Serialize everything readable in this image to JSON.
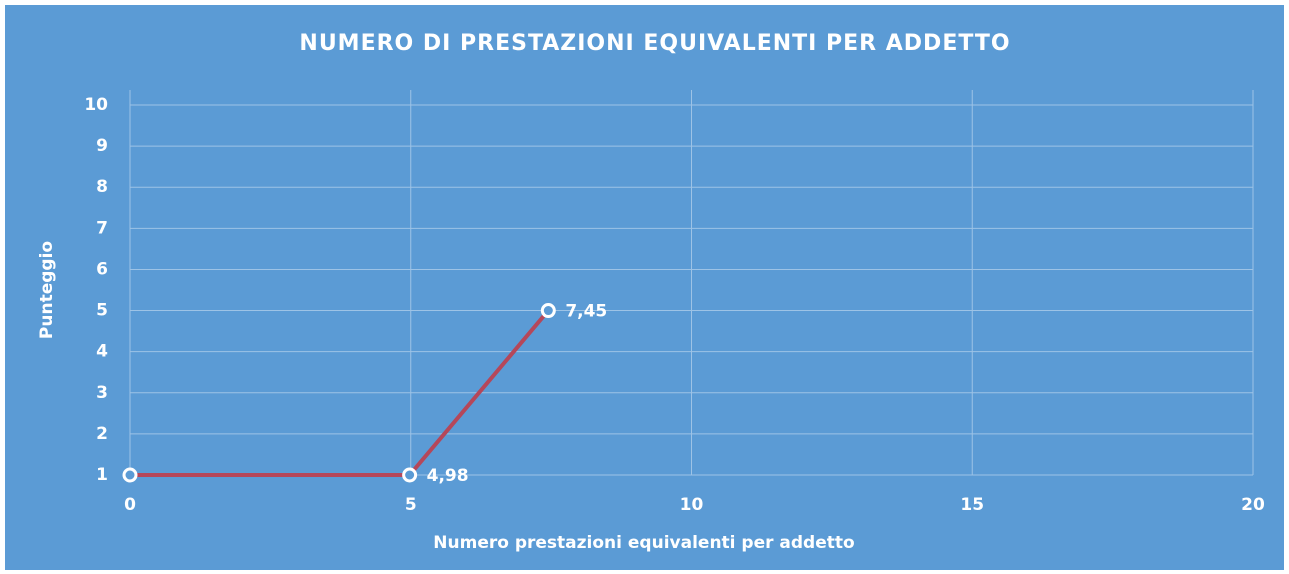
{
  "chart_data": {
    "type": "line",
    "title": "NUMERO DI PRESTAZIONI EQUIVALENTI PER ADDETTO",
    "x_label": "Numero prestazioni equivalenti per addetto",
    "y_label": "Punteggio",
    "series": [
      {
        "color": "#b5475a",
        "x": [
          0,
          4.98,
          7.45
        ],
        "values": [
          1,
          1,
          5
        ],
        "x_labels": [
          null,
          "4,98",
          "7,45"
        ]
      }
    ],
    "xlim": [
      0,
      20
    ],
    "xticks": [
      0,
      5,
      10,
      15,
      20
    ],
    "ylim": [
      1,
      10
    ],
    "yticks": [
      1,
      2,
      3,
      4,
      5,
      6,
      7,
      8,
      9,
      10
    ],
    "grid": true
  }
}
